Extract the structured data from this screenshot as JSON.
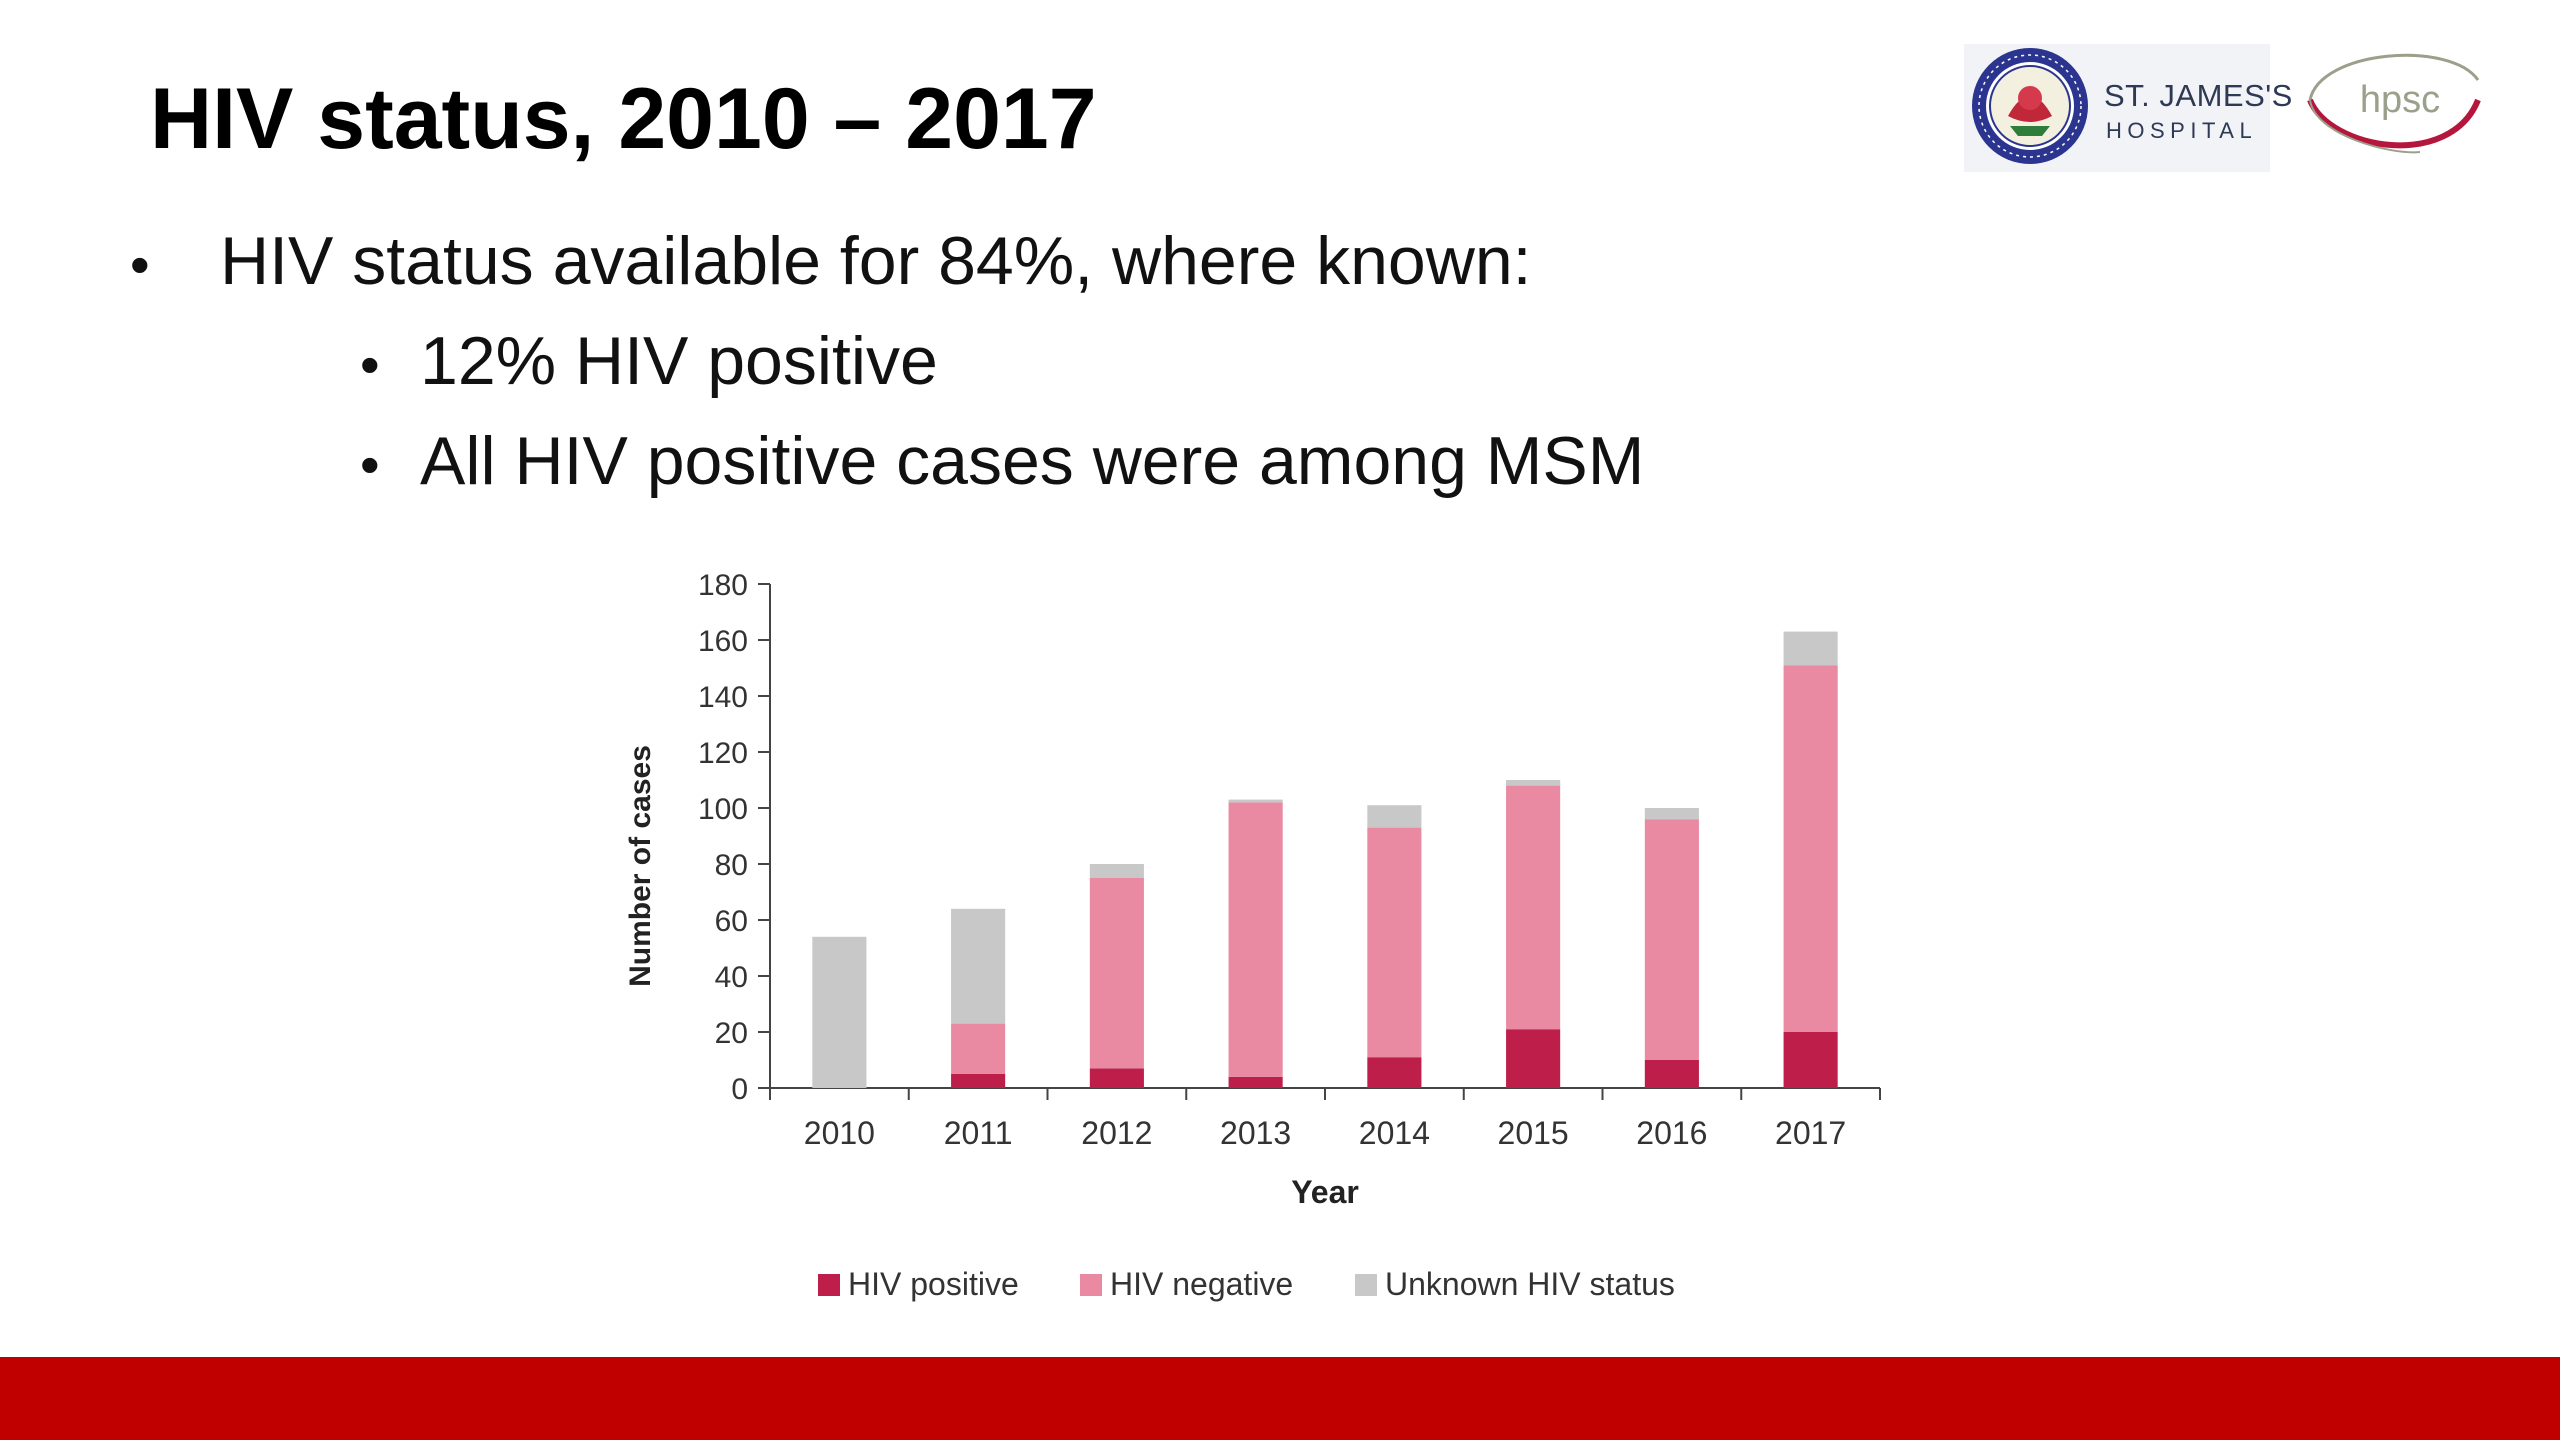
{
  "slide": {
    "title": "HIV status, 2010 – 2017",
    "bullets": [
      {
        "text": "HIV status available for 84%, where known:"
      },
      {
        "text": "12% HIV positive"
      },
      {
        "text": "All HIV positive cases were among MSM"
      }
    ],
    "bullet_glyph": "•"
  },
  "logos": {
    "st_james_name": "ST. JAMES'S",
    "st_james_sub": "HOSPITAL",
    "hpsc": "hpsc"
  },
  "colors": {
    "hiv_positive": "#be1e4a",
    "hiv_negative": "#e98aa2",
    "unknown": "#c8c8c8",
    "footer": "#c00000"
  },
  "chart_data": {
    "type": "bar",
    "stacked": true,
    "categories": [
      "2010",
      "2011",
      "2012",
      "2013",
      "2014",
      "2015",
      "2016",
      "2017"
    ],
    "series": [
      {
        "name": "HIV positive",
        "values": [
          0,
          5,
          7,
          4,
          11,
          21,
          10,
          20
        ]
      },
      {
        "name": "HIV negative",
        "values": [
          0,
          18,
          68,
          98,
          82,
          87,
          86,
          131
        ]
      },
      {
        "name": "Unknown HIV status",
        "values": [
          54,
          41,
          5,
          1,
          8,
          2,
          4,
          12
        ]
      }
    ],
    "title": "",
    "xlabel": "Year",
    "ylabel": "Number of cases",
    "ylim": [
      0,
      180
    ],
    "yticks": [
      0,
      20,
      40,
      60,
      80,
      100,
      120,
      140,
      160,
      180
    ],
    "grid": false,
    "legend_position": "bottom"
  }
}
